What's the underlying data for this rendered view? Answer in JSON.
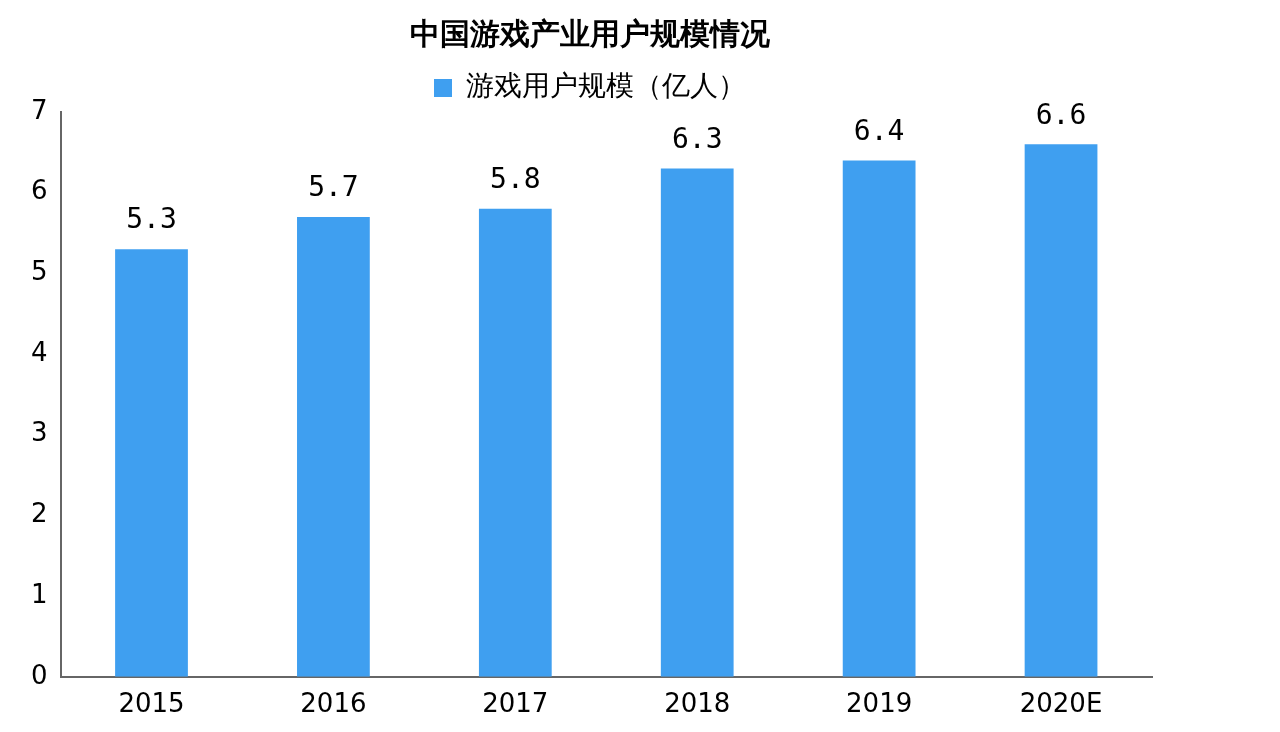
{
  "chart_data": {
    "type": "bar",
    "title": "中国游戏产业用户规模情况",
    "categories": [
      "2015",
      "2016",
      "2017",
      "2018",
      "2019",
      "2020E"
    ],
    "series": [
      {
        "name": "游戏用户规模（亿人）",
        "color": "#3f9ff0",
        "values": [
          5.3,
          5.7,
          5.8,
          6.3,
          6.4,
          6.6
        ]
      }
    ],
    "ylim": [
      0,
      7
    ],
    "yticks": [
      0,
      1,
      2,
      3,
      4,
      5,
      6,
      7
    ],
    "grid": false,
    "legend": "top",
    "data_labels": true
  }
}
